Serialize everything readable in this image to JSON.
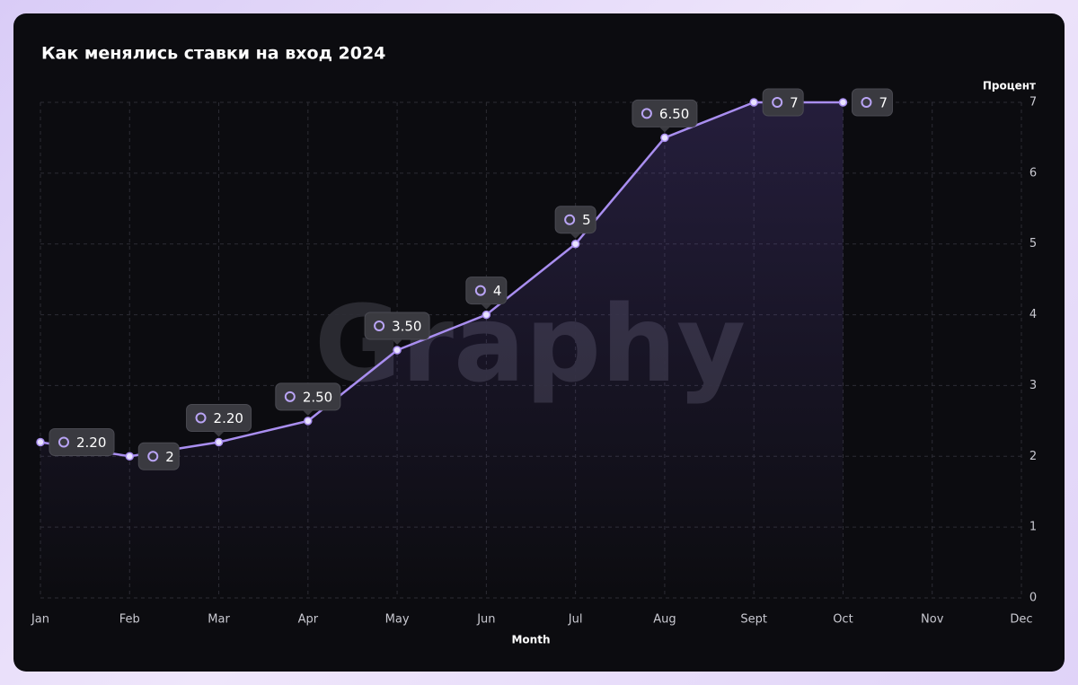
{
  "chart_data": {
    "type": "line",
    "title": "Как менялись ставки на вход 2024",
    "watermark": "Graphy",
    "x_label": "Month",
    "y_label": "Процент",
    "categories": [
      "Jan",
      "Feb",
      "Mar",
      "Apr",
      "May",
      "Jun",
      "Jul",
      "Aug",
      "Sept",
      "Oct",
      "Nov",
      "Dec"
    ],
    "values": [
      2.2,
      2,
      2.2,
      2.5,
      3.5,
      4,
      5,
      6.5,
      7,
      7,
      null,
      null
    ],
    "value_labels": [
      "2.20",
      "2",
      "2.20",
      "2.50",
      "3.50",
      "4",
      "5",
      "6.50",
      "7",
      "7",
      null,
      null
    ],
    "color": "#a98ef0",
    "ylim": [
      0,
      7
    ],
    "yticks": [
      0,
      1,
      2,
      3,
      4,
      5,
      6,
      7
    ],
    "grid": true
  }
}
